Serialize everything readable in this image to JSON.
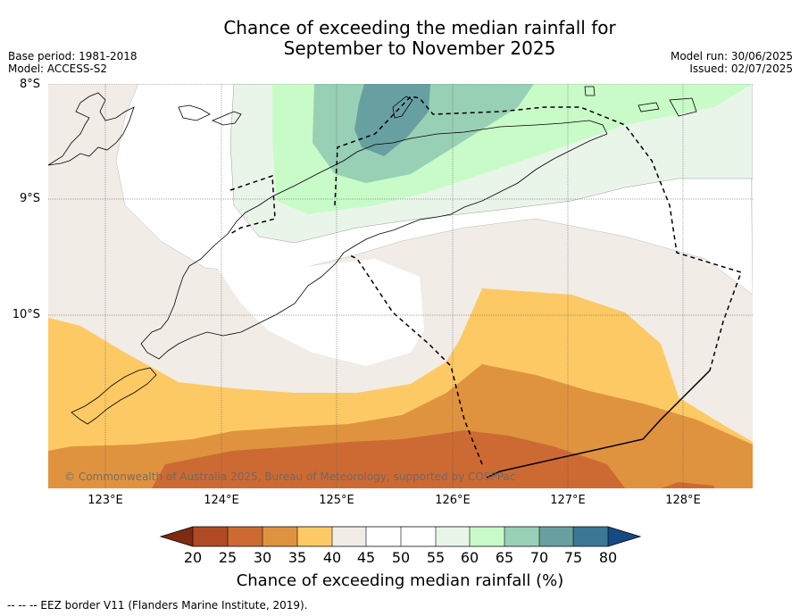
{
  "title": {
    "line1": "Chance of exceeding the median rainfall for",
    "line2": "September to November 2025"
  },
  "meta": {
    "base_period": "Base period: 1981-2018",
    "model": "Model: ACCESS-S2",
    "model_run": "Model run: 30/06/2025",
    "issued": "Issued: 02/07/2025"
  },
  "map": {
    "lat_labels": [
      "8°S",
      "9°S",
      "10°S"
    ],
    "lon_labels": [
      "123°E",
      "124°E",
      "125°E",
      "126°E",
      "127°E",
      "128°E"
    ],
    "copyright": "© Commonwealth of Australia 2025, Bureau of Meteorology, supported by COSPPac"
  },
  "colorbar": {
    "label": "Chance of exceeding median rainfall (%)",
    "ticks": [
      "20",
      "25",
      "30",
      "35",
      "40",
      "45",
      "50",
      "55",
      "60",
      "65",
      "70",
      "75",
      "80"
    ],
    "colors": [
      "#7f2a12",
      "#b04a25",
      "#cd6a33",
      "#e0933f",
      "#fdc964",
      "#f1ece6",
      "#ffffff",
      "#ffffff",
      "#eaf5ea",
      "#c9fbc8",
      "#98d0b5",
      "#68a0a2",
      "#3c7796",
      "#164a84"
    ]
  },
  "footer": {
    "eez_note": "--  --  -- EEZ border V11 (Flanders Marine Institute, 2019)."
  }
}
